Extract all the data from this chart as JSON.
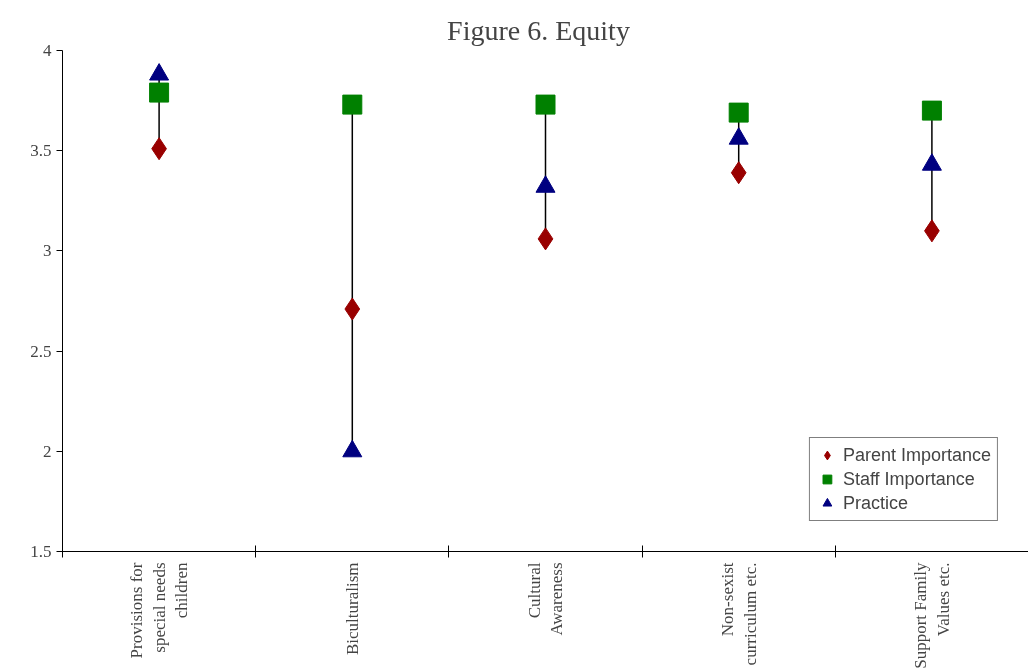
{
  "chart_data": {
    "type": "scatter",
    "title": "Figure 6.   Equity",
    "categories": [
      "Provisions for special needs children",
      "Biculturalism",
      "Cultural Awareness",
      "Non-sexist curriculum etc.",
      "Support Family Values etc."
    ],
    "series": [
      {
        "name": "Parent Importance",
        "color": "#990000",
        "marker": "diamond",
        "values": [
          3.51,
          2.71,
          3.06,
          3.39,
          3.1
        ]
      },
      {
        "name": "Staff Importance",
        "color": "#008000",
        "marker": "square",
        "values": [
          3.79,
          3.73,
          3.73,
          3.69,
          3.7
        ]
      },
      {
        "name": "Practice",
        "color": "#000080",
        "marker": "triangle",
        "values": [
          3.88,
          2.0,
          3.32,
          3.56,
          3.43
        ]
      }
    ],
    "ylim": [
      1.5,
      4
    ],
    "yticks": [
      1.5,
      2,
      2.5,
      3,
      3.5,
      4
    ],
    "grid": false,
    "legend": "bottom right"
  }
}
